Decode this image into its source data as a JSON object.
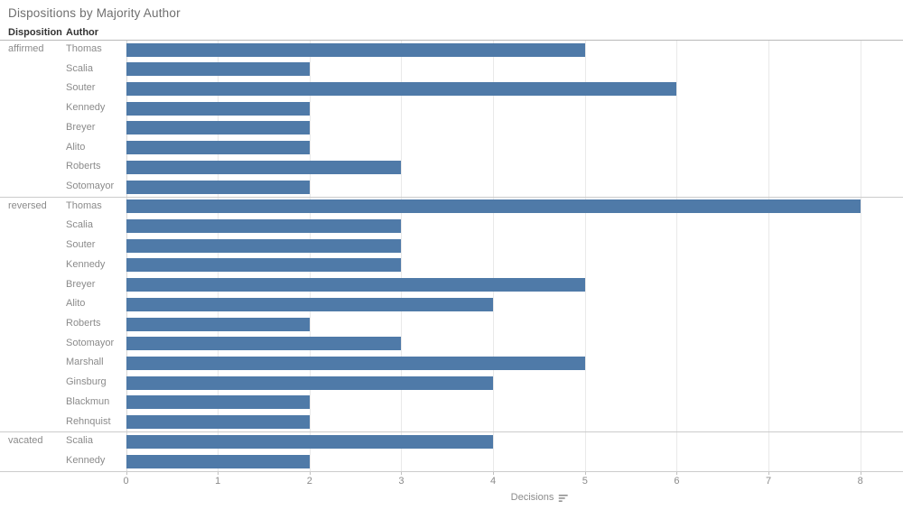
{
  "title": "Dispositions by Majority Author",
  "columns": {
    "disposition": "Disposition",
    "author": "Author"
  },
  "axis": {
    "label": "Decisions",
    "ticks": [
      0,
      1,
      2,
      3,
      4,
      5,
      6,
      7,
      8
    ],
    "min": 0,
    "max": 8,
    "sort_icon": "sort-descending-icon"
  },
  "colors": {
    "bar": "#4f7aa8",
    "gridline": "#e9e9e9",
    "separator": "#cccccc",
    "label_text": "#8b8b8b",
    "header_text": "#333333",
    "title_text": "#6f6f6f"
  },
  "chart_data": {
    "type": "bar",
    "orientation": "horizontal",
    "title": "Dispositions by Majority Author",
    "xlabel": "Decisions",
    "xlim": [
      0,
      8
    ],
    "grid": "vertical-on",
    "groups": [
      {
        "disposition": "affirmed",
        "authors": [
          "Thomas",
          "Scalia",
          "Souter",
          "Kennedy",
          "Breyer",
          "Alito",
          "Roberts",
          "Sotomayor"
        ],
        "values": [
          5,
          2,
          6,
          2,
          2,
          2,
          3,
          2
        ]
      },
      {
        "disposition": "reversed",
        "authors": [
          "Thomas",
          "Scalia",
          "Souter",
          "Kennedy",
          "Breyer",
          "Alito",
          "Roberts",
          "Sotomayor",
          "Marshall",
          "Ginsburg",
          "Blackmun",
          "Rehnquist"
        ],
        "values": [
          8,
          3,
          3,
          3,
          5,
          4,
          2,
          3,
          5,
          4,
          2,
          2
        ]
      },
      {
        "disposition": "vacated",
        "authors": [
          "Scalia",
          "Kennedy"
        ],
        "values": [
          4,
          2
        ]
      }
    ]
  }
}
